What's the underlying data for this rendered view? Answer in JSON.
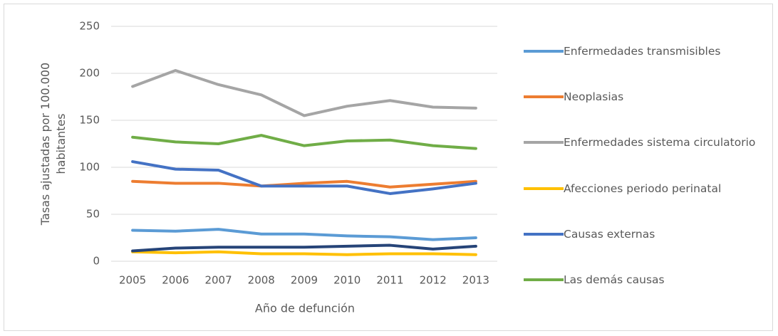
{
  "chart_data": {
    "type": "line",
    "ylabel": "Tasas ajustadas por 100.000 habitantes",
    "xlabel": "Año de defunción",
    "categories": [
      "2005",
      "2006",
      "2007",
      "2008",
      "2009",
      "2010",
      "2011",
      "2012",
      "2013"
    ],
    "ylim": [
      0,
      250
    ],
    "yticks": [
      0,
      50,
      100,
      150,
      200,
      250
    ],
    "grid": true,
    "series": [
      {
        "name": "Enfermedades transmisibles",
        "color": "#5b9bd5",
        "values": [
          33,
          32,
          34,
          29,
          29,
          27,
          26,
          23,
          25
        ]
      },
      {
        "name": "Neoplasias",
        "color": "#ed7d31",
        "values": [
          85,
          83,
          83,
          80,
          83,
          85,
          79,
          82,
          85
        ]
      },
      {
        "name": "Enfermedades sistema circulatorio",
        "color": "#a5a5a5",
        "values": [
          186,
          203,
          188,
          177,
          155,
          165,
          171,
          164,
          163
        ]
      },
      {
        "name": "Afecciones periodo perinatal",
        "color": "#ffc000",
        "values": [
          10,
          9,
          10,
          8,
          8,
          7,
          8,
          8,
          7
        ]
      },
      {
        "name": "Causas externas",
        "color": "#4472c4",
        "values": [
          106,
          98,
          97,
          80,
          80,
          80,
          72,
          77,
          83
        ]
      },
      {
        "name": "Las demás causas",
        "color": "#70ad47",
        "values": [
          132,
          127,
          125,
          134,
          123,
          128,
          129,
          123,
          120
        ]
      },
      {
        "color": "#264478",
        "values": [
          11,
          14,
          15,
          15,
          15,
          16,
          17,
          13,
          16
        ]
      }
    ]
  }
}
